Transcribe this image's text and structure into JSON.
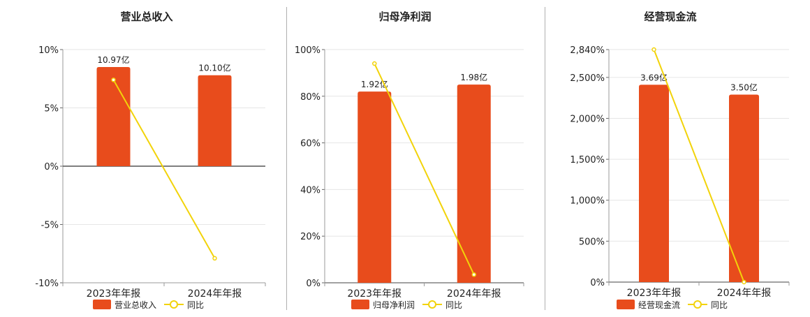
{
  "colors": {
    "bar": "#E84C1C",
    "line": "#F2D30A",
    "axis": "#333333",
    "grid": "#e6e6e6",
    "text": "#222222"
  },
  "chart_data": [
    {
      "type": "bar",
      "title": "营业总收入",
      "categories": [
        "2023年年报",
        "2024年年报"
      ],
      "bar_labels": [
        "10.97亿",
        "10.10亿"
      ],
      "series": [
        {
          "name": "营业总收入",
          "kind": "bar",
          "values": [
            8.5,
            7.8
          ]
        },
        {
          "name": "同比",
          "kind": "line",
          "values": [
            7.4,
            -7.9
          ]
        }
      ],
      "ylim": [
        -10,
        10
      ],
      "yticks": [
        -10,
        -5,
        0,
        5,
        10
      ],
      "ytick_labels": [
        "-10%",
        "-5%",
        "0%",
        "5%",
        "10%"
      ],
      "grid": true,
      "legend": "bottom"
    },
    {
      "type": "bar",
      "title": "归母净利润",
      "categories": [
        "2023年年报",
        "2024年年报"
      ],
      "bar_labels": [
        "1.92亿",
        "1.98亿"
      ],
      "series": [
        {
          "name": "归母净利润",
          "kind": "bar",
          "values": [
            82,
            85
          ]
        },
        {
          "name": "同比",
          "kind": "line",
          "values": [
            94,
            3.5
          ]
        }
      ],
      "ylim": [
        0,
        100
      ],
      "yticks": [
        0,
        20,
        40,
        60,
        80,
        100
      ],
      "ytick_labels": [
        "0%",
        "20%",
        "40%",
        "60%",
        "80%",
        "100%"
      ],
      "grid": true,
      "legend": "bottom"
    },
    {
      "type": "bar",
      "title": "经营现金流",
      "categories": [
        "2023年年报",
        "2024年年报"
      ],
      "bar_labels": [
        "3.69亿",
        "3.50亿"
      ],
      "series": [
        {
          "name": "经营现金流",
          "kind": "bar",
          "values": [
            2410,
            2290
          ]
        },
        {
          "name": "同比",
          "kind": "line",
          "values": [
            2840,
            0
          ]
        }
      ],
      "ylim": [
        0,
        2840
      ],
      "yticks": [
        0,
        500,
        1000,
        1500,
        2000,
        2500,
        2840
      ],
      "ytick_labels": [
        "0%",
        "500%",
        "1,000%",
        "1,500%",
        "2,000%",
        "2,500%",
        "2,840%"
      ],
      "grid": true,
      "legend": "bottom"
    }
  ]
}
